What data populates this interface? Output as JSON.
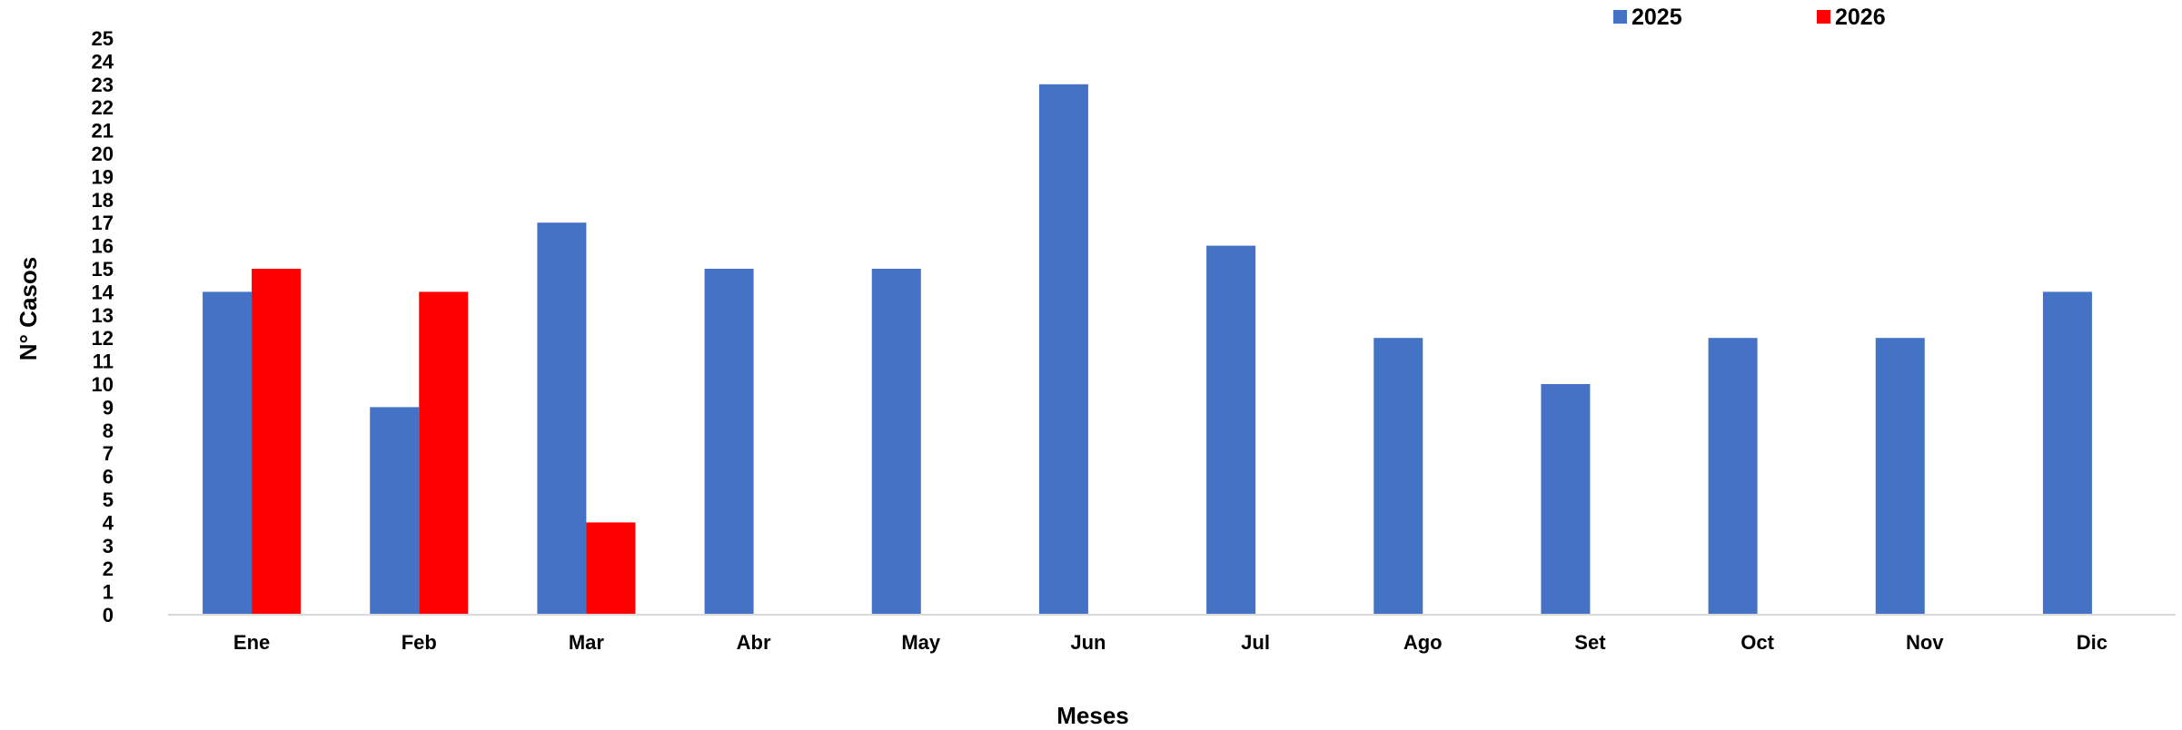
{
  "chart_data": {
    "type": "bar",
    "title": "",
    "xlabel": "Meses",
    "ylabel": "N° Casos",
    "ylim": [
      0,
      25
    ],
    "yticks": [
      0,
      1,
      2,
      3,
      4,
      5,
      6,
      7,
      8,
      9,
      10,
      11,
      12,
      13,
      14,
      15,
      16,
      17,
      18,
      19,
      20,
      21,
      22,
      23,
      24,
      25
    ],
    "grid": false,
    "legend_position": "top-right",
    "categories": [
      "Ene",
      "Feb",
      "Mar",
      "Abr",
      "May",
      "Jun",
      "Jul",
      "Ago",
      "Set",
      "Oct",
      "Nov",
      "Dic"
    ],
    "series": [
      {
        "name": "2025",
        "color": "#4472C4",
        "values": [
          14,
          9,
          17,
          15,
          15,
          23,
          16,
          12,
          10,
          12,
          12,
          14
        ]
      },
      {
        "name": "2026",
        "color": "#FF0000",
        "values": [
          15,
          14,
          4,
          null,
          null,
          null,
          null,
          null,
          null,
          null,
          null,
          null
        ]
      }
    ]
  }
}
